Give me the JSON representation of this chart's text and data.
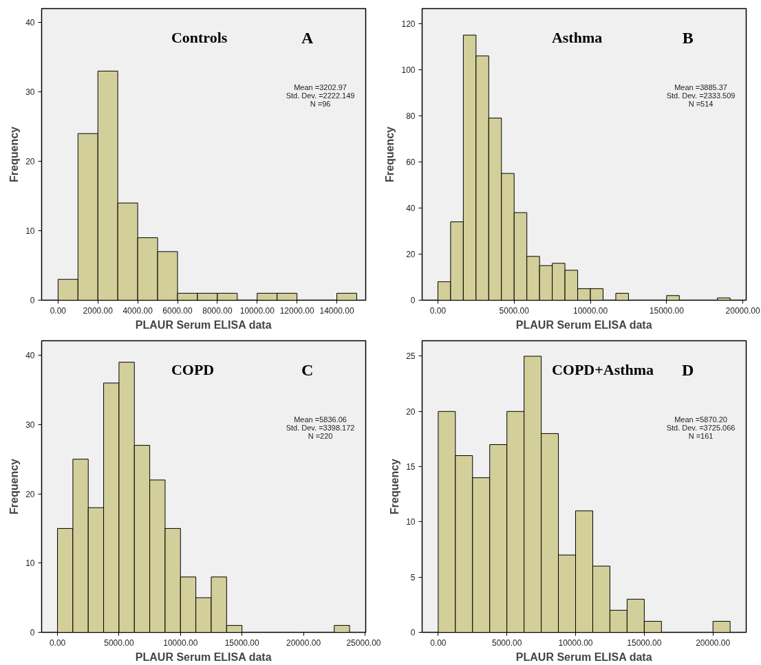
{
  "chart_data": [
    {
      "type": "histogram",
      "title": "Controls",
      "xlabel": "PLAUR Serum ELISA data",
      "ylabel": "Frequency",
      "color": "#d3cf9a",
      "annotations": [
        "A",
        "Mean =3202.97",
        "Std. Dev. =2222.149",
        "N =96"
      ],
      "bins": [
        0,
        1000,
        2000,
        3000,
        4000,
        5000,
        6000,
        7000,
        8000,
        9000,
        10000,
        11000,
        12000,
        13000,
        14000,
        15000
      ],
      "values": [
        3,
        24,
        33,
        14,
        9,
        7,
        1,
        1,
        1,
        0,
        1,
        1,
        0,
        0,
        1
      ],
      "xlim": [
        -825,
        15450
      ],
      "ylim": [
        0,
        42
      ],
      "xticks": [
        {
          "value": 0,
          "label": "0.00"
        },
        {
          "value": 2000,
          "label": "2000.00"
        },
        {
          "value": 4000,
          "label": "4000.00"
        },
        {
          "value": 6000,
          "label": "6000.00"
        },
        {
          "value": 8000,
          "label": "8000.00"
        },
        {
          "value": 10000,
          "label": "10000.00"
        },
        {
          "value": 12000,
          "label": "12000.00"
        },
        {
          "value": 14000,
          "label": "14000.00"
        }
      ],
      "yticks": [
        0,
        10,
        20,
        30,
        40
      ],
      "grid": false
    },
    {
      "type": "histogram",
      "title": "Asthma",
      "xlabel": "PLAUR Serum ELISA data",
      "ylabel": "Frequency",
      "color": "#d3cf9a",
      "annotations": [
        "B",
        "Mean =3885.37",
        "Std. Dev. =2333.509",
        "N =514"
      ],
      "bins": [
        0,
        833,
        1667,
        2500,
        3333,
        4167,
        5000,
        5833,
        6667,
        7500,
        8333,
        9167,
        10000,
        10833,
        11667,
        12500,
        13333,
        14167,
        15000,
        15833,
        16667,
        17500,
        18333,
        19167
      ],
      "values": [
        8,
        34,
        115,
        106,
        79,
        55,
        38,
        19,
        15,
        16,
        13,
        5,
        5,
        0,
        3,
        0,
        0,
        0,
        2,
        0,
        0,
        0,
        1
      ],
      "xlim": [
        -1035,
        20220
      ],
      "ylim": [
        0,
        126.5
      ],
      "xticks": [
        {
          "value": 0,
          "label": "0.00"
        },
        {
          "value": 5000,
          "label": "5000.00"
        },
        {
          "value": 10000,
          "label": "10000.00"
        },
        {
          "value": 15000,
          "label": "15000.00"
        },
        {
          "value": 20000,
          "label": "20000.00"
        }
      ],
      "yticks": [
        0,
        20,
        40,
        60,
        80,
        100,
        120
      ],
      "grid": false
    },
    {
      "type": "histogram",
      "title": "COPD",
      "xlabel": "PLAUR Serum ELISA data",
      "ylabel": "Frequency",
      "color": "#d3cf9a",
      "annotations": [
        "C",
        "Mean =5836.06",
        "Std. Dev. =3398.172",
        "N =220"
      ],
      "bins": [
        0,
        1250,
        2500,
        3750,
        5000,
        6250,
        7500,
        8750,
        10000,
        11250,
        12500,
        13750,
        15000,
        16250,
        17500,
        18750,
        20000,
        21250,
        22500,
        23750
      ],
      "values": [
        15,
        25,
        18,
        36,
        39,
        27,
        22,
        15,
        8,
        5,
        8,
        1,
        0,
        0,
        0,
        0,
        0,
        0,
        1
      ],
      "xlim": [
        -1290,
        25060
      ],
      "ylim": [
        0,
        42.1
      ],
      "xticks": [
        {
          "value": 0,
          "label": "0.00"
        },
        {
          "value": 5000,
          "label": "5000.00"
        },
        {
          "value": 10000,
          "label": "10000.00"
        },
        {
          "value": 15000,
          "label": "15000.00"
        },
        {
          "value": 20000,
          "label": "20000.00"
        },
        {
          "value": 25000,
          "label": "25000.00"
        }
      ],
      "yticks": [
        0,
        10,
        20,
        30,
        40
      ],
      "grid": false
    },
    {
      "type": "histogram",
      "title": "COPD+Asthma",
      "xlabel": "PLAUR Serum ELISA data",
      "ylabel": "Frequency",
      "color": "#d3cf9a",
      "annotations": [
        "D",
        "Mean =5870.20",
        "Std. Dev. =3725.066",
        "N =161"
      ],
      "bins": [
        0,
        1250,
        2500,
        3750,
        5000,
        6250,
        7500,
        8750,
        10000,
        11250,
        12500,
        13750,
        15000,
        16250,
        17500,
        18750,
        20000,
        21250
      ],
      "values": [
        20,
        16,
        14,
        17,
        20,
        25,
        18,
        7,
        11,
        6,
        2,
        3,
        1,
        0,
        0,
        0,
        1
      ],
      "xlim": [
        -1170,
        22420
      ],
      "ylim": [
        0,
        26.4
      ],
      "xticks": [
        {
          "value": 0,
          "label": "0.00"
        },
        {
          "value": 5000,
          "label": "5000.00"
        },
        {
          "value": 10000,
          "label": "10000.00"
        },
        {
          "value": 15000,
          "label": "15000.00"
        },
        {
          "value": 20000,
          "label": "20000.00"
        }
      ],
      "yticks": [
        0,
        5,
        10,
        15,
        20,
        25
      ],
      "grid": false
    }
  ]
}
